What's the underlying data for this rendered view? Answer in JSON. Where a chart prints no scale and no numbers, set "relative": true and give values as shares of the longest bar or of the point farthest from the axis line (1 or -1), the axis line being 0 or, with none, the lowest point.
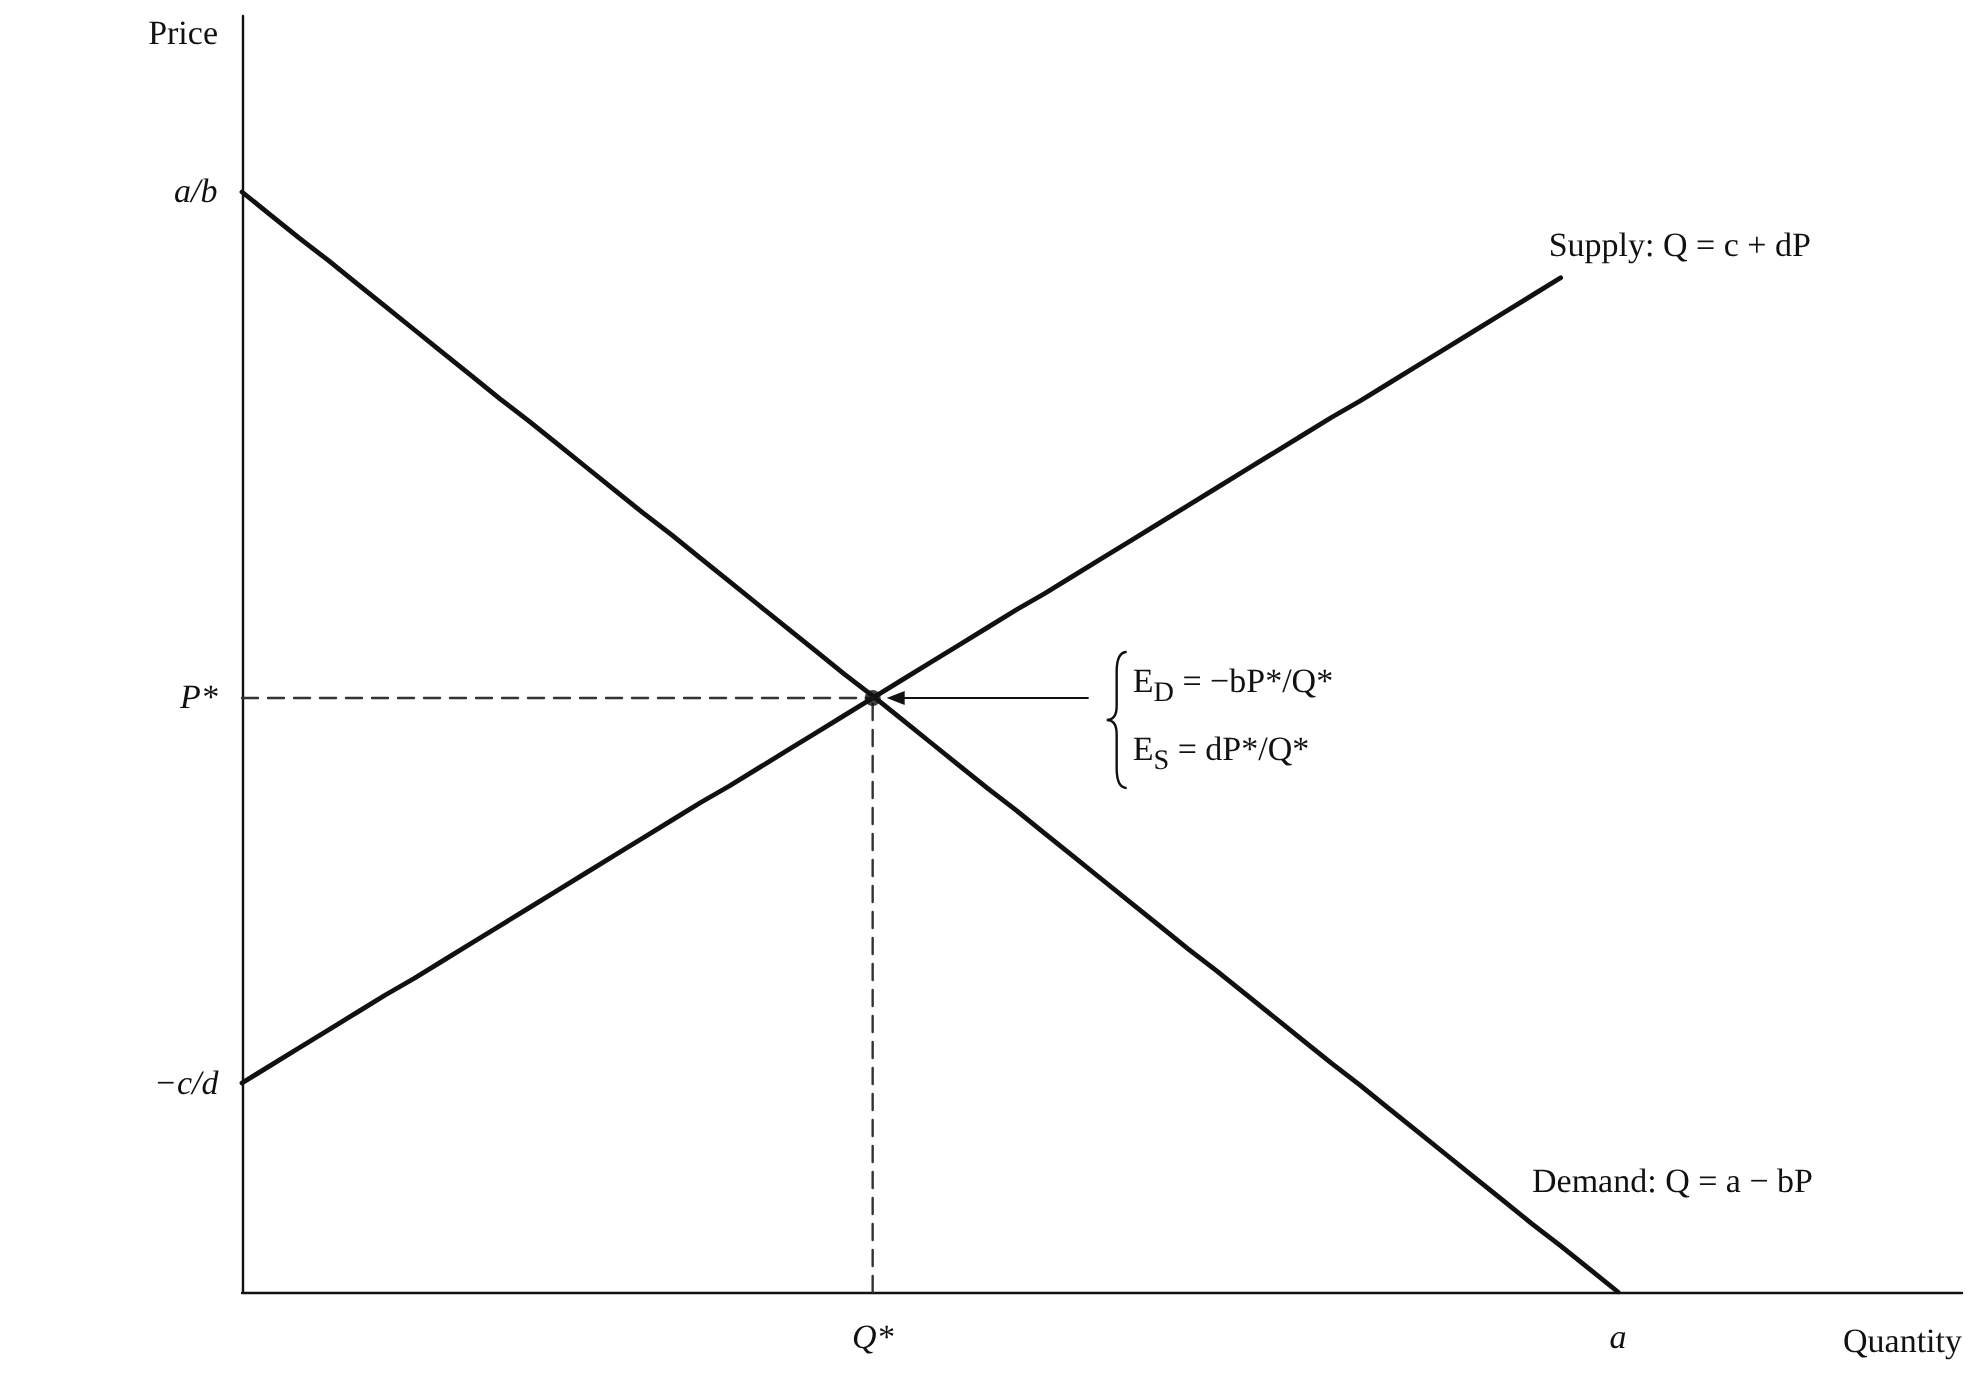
{
  "chart_data": {
    "type": "line",
    "xlabel": "Quantity",
    "ylabel": "Price",
    "relative": true,
    "grid": false,
    "marker": "none",
    "line_style": "solid",
    "categories": [
      null,
      null,
      null,
      null,
      null,
      null,
      null,
      null,
      null,
      null,
      null,
      null,
      null,
      null,
      null,
      null,
      null,
      null,
      null,
      null,
      null,
      null,
      "Q*",
      null,
      null,
      null,
      null,
      null,
      null,
      null,
      null,
      null,
      null,
      null,
      null,
      null,
      null,
      null,
      null,
      null,
      null,
      null,
      null,
      null,
      null,
      null,
      null,
      null,
      "a",
      null,
      null,
      null,
      null,
      null,
      null,
      null,
      null,
      null,
      null,
      null,
      null
    ],
    "series": [
      {
        "color": "#111111",
        "values": [
          1,
          0.979,
          0.958,
          0.938,
          0.917,
          0.896,
          0.875,
          0.854,
          0.833,
          0.812,
          0.792,
          0.771,
          0.75,
          0.729,
          0.708,
          0.688,
          0.667,
          0.646,
          0.625,
          0.604,
          0.583,
          0.562,
          0.542,
          0.521,
          0.5,
          0.479,
          0.458,
          0.438,
          0.417,
          0.396,
          0.375,
          0.354,
          0.333,
          0.312,
          0.292,
          0.271,
          0.25,
          0.229,
          0.208,
          0.188,
          0.167,
          0.146,
          0.125,
          0.104,
          0.083,
          0.062,
          0.042,
          0.021,
          0,
          null,
          null,
          null,
          null,
          null,
          null,
          null,
          null,
          null,
          null,
          null,
          null
        ]
      },
      {
        "color": "#111111",
        "values": [
          0.19,
          0.206,
          0.222,
          0.238,
          0.254,
          0.27,
          0.285,
          0.301,
          0.317,
          0.333,
          0.349,
          0.365,
          0.381,
          0.397,
          0.413,
          0.429,
          0.445,
          0.46,
          0.476,
          0.492,
          0.508,
          0.524,
          0.54,
          0.556,
          0.572,
          0.588,
          0.604,
          0.62,
          0.635,
          0.651,
          0.667,
          0.683,
          0.699,
          0.715,
          0.731,
          0.747,
          0.763,
          0.779,
          0.795,
          0.81,
          0.826,
          0.842,
          0.858,
          0.874,
          0.89,
          0.906,
          0.922,
          null,
          null,
          null,
          null,
          null,
          null,
          null,
          null,
          null,
          null,
          null,
          null,
          null,
          null
        ]
      },
      {
        "color": "#333333",
        "line_style": "dashed",
        "values": [
          0.54,
          0.54,
          0.54,
          0.54,
          0.54,
          0.54,
          0.54,
          0.54,
          0.54,
          0.54,
          0.54,
          0.54,
          0.54,
          0.54,
          0.54,
          0.54,
          0.54,
          0.54,
          0.54,
          0.54,
          0.54,
          0.54,
          0.54,
          null,
          null,
          null,
          null,
          null,
          null,
          null,
          null,
          null,
          null,
          null,
          null,
          null,
          null,
          null,
          null,
          null,
          null,
          null,
          null,
          null,
          null,
          null,
          null,
          null,
          null,
          null,
          null,
          null,
          null,
          null,
          null,
          null,
          null,
          null,
          null,
          null,
          null
        ]
      },
      {
        "color": "#333333",
        "line_style": "dashed",
        "x": [
          "Q*",
          "Q*"
        ],
        "values": [
          0,
          0.54
        ]
      },
      {
        "type": "scatter",
        "marker": "circle",
        "color": "#111111",
        "x": [
          "Q*"
        ],
        "values": [
          0.54
        ]
      }
    ],
    "annotations": [
      "a/b",
      "P*",
      "−c/d",
      "Supply: Q = c + dP",
      "Demand: Q = a − bP",
      "E$_{D}$ = −bP*/Q*",
      "E$_{S}$ = dP*/Q*"
    ]
  }
}
